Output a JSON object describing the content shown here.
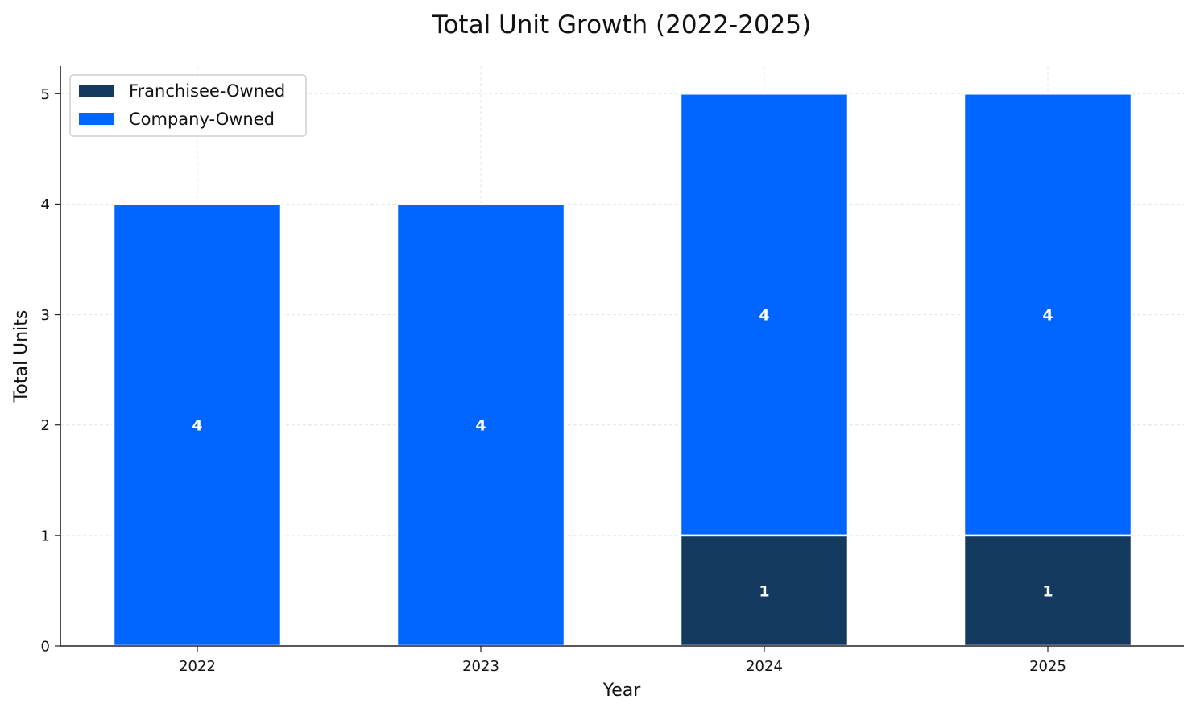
{
  "chart_data": {
    "type": "bar",
    "stacked": true,
    "title": "Total Unit Growth (2022-2025)",
    "xlabel": "Year",
    "ylabel": "Total Units",
    "categories": [
      "2022",
      "2023",
      "2024",
      "2025"
    ],
    "ylim": [
      0,
      5.25
    ],
    "yticks": [
      "0",
      "1",
      "2",
      "3",
      "4",
      "5"
    ],
    "grid": true,
    "legend_position": "top-left",
    "series": [
      {
        "name": "Franchisee-Owned",
        "values": [
          0,
          0,
          1,
          1
        ],
        "labels": [
          "",
          "",
          "1",
          "1"
        ],
        "color": "#153a60"
      },
      {
        "name": "Company-Owned",
        "values": [
          4,
          4,
          4,
          4
        ],
        "labels": [
          "4",
          "4",
          "4",
          "4"
        ],
        "color": "#0066ff"
      }
    ]
  }
}
